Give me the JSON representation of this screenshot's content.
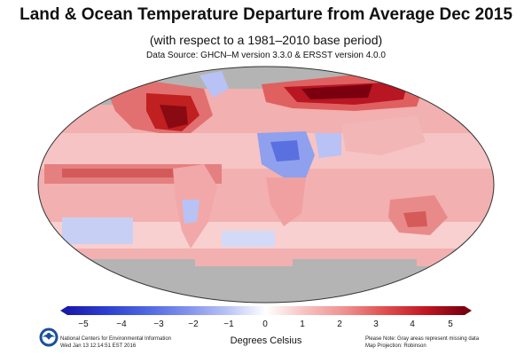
{
  "header": {
    "title": "Land & Ocean Temperature Departure from Average Dec 2015",
    "subtitle": "(with respect to a 1981–2010 base period)",
    "source": "Data Source: GHCN–M version 3.3.0 & ERSST version 4.0.0"
  },
  "legend": {
    "unit": "Degrees Celsius",
    "ticks": [
      "−5",
      "−4",
      "−3",
      "−2",
      "−1",
      "0",
      "1",
      "2",
      "3",
      "4",
      "5"
    ],
    "range": [
      -5,
      5
    ],
    "colors": {
      "cold_end": "#1a1aa8",
      "neutral": "#ffffff",
      "warm_end": "#7a0010",
      "missing": "#b4b4b4"
    }
  },
  "footer": {
    "agency": "National Centers for Environmental Information",
    "timestamp": "Wed Jan 13 12:14:51 EST 2016",
    "note": "Please Note: Gray areas represent missing data",
    "projection": "Map Projection: Robinson"
  },
  "logo": {
    "icon": "noaa-logo-icon"
  },
  "map": {
    "projection": "Robinson",
    "missing_regions": [
      "Arctic",
      "Antarctic ocean band"
    ],
    "highlight_anomalies": [
      {
        "region": "Eastern North America",
        "anomaly_c": 5
      },
      {
        "region": "Northern Eurasia",
        "anomaly_c": 5
      },
      {
        "region": "North Africa / Middle East",
        "anomaly_c": -2
      },
      {
        "region": "Central Africa",
        "anomaly_c": -1
      }
    ]
  }
}
